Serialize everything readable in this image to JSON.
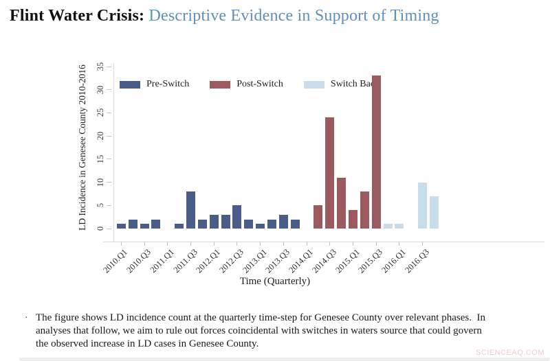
{
  "slide": {
    "title_black": "Flint Water Crisis:",
    "title_blue": "Descriptive Evidence in Support of Timing",
    "title_blue_color": "#5d8fbf"
  },
  "chart_data": {
    "type": "bar",
    "title": "",
    "xlabel": "Time (Quarterly)",
    "ylabel": "LD Incidence in Genesee County 2010-2016",
    "ylim": [
      0,
      35
    ],
    "yticks": [
      0,
      5,
      10,
      15,
      20,
      25,
      30,
      35
    ],
    "grid": false,
    "legend_position": "top-left-inside",
    "xtick_labels": [
      "2010.Q1",
      "2010.Q3",
      "2011.Q1",
      "2011.Q3",
      "2012.Q1",
      "2012.Q3",
      "2013.Q1",
      "2013.Q3",
      "2014.Q1",
      "2014.Q3",
      "2015.Q1",
      "2015.Q3",
      "2016.Q1",
      "2016.Q3"
    ],
    "categories": [
      "2010.Q1",
      "2010.Q2",
      "2010.Q3",
      "2010.Q4",
      "2011.Q1",
      "2011.Q2",
      "2011.Q3",
      "2011.Q4",
      "2012.Q1",
      "2012.Q2",
      "2012.Q3",
      "2012.Q4",
      "2013.Q1",
      "2013.Q2",
      "2013.Q3",
      "2013.Q4",
      "2014.Q1",
      "2014.Q2",
      "2014.Q3",
      "2014.Q4",
      "2015.Q1",
      "2015.Q2",
      "2015.Q3",
      "2015.Q4",
      "2016.Q1",
      "2016.Q2",
      "2016.Q3",
      "2016.Q4"
    ],
    "values": [
      1,
      2,
      1,
      2,
      0,
      1,
      8,
      2,
      3,
      3,
      5,
      2,
      1,
      2,
      3,
      2,
      0,
      5,
      24,
      11,
      4,
      8,
      33,
      1,
      1,
      0,
      10,
      7
    ],
    "phase_of_bar": [
      0,
      0,
      0,
      0,
      0,
      0,
      0,
      0,
      0,
      0,
      0,
      0,
      0,
      0,
      0,
      0,
      0,
      1,
      1,
      1,
      1,
      1,
      1,
      2,
      2,
      2,
      2,
      2
    ],
    "legend": [
      {
        "label": "Pre-Switch",
        "color": "#4a5c88"
      },
      {
        "label": "Post-Switch",
        "color": "#9b5a5d"
      },
      {
        "label": "Switch Back",
        "color": "#c9dcea"
      }
    ]
  },
  "caption": {
    "bullet": "·",
    "lines": [
      "The figure shows LD incidence count at the quarterly time-step for Genesee County over relevant phases.  In",
      "analyses that follow, we aim to rule out forces coincidental with switches in waters source that could govern",
      "the observed increase in LD cases in Genesee County."
    ]
  },
  "watermark": "SCIENCEAQ.COM"
}
